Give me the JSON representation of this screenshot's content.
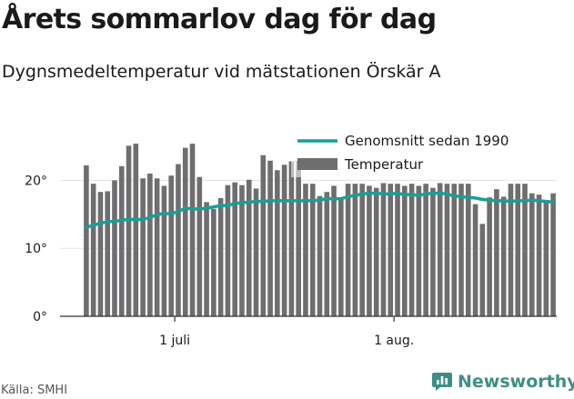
{
  "title": "Årets sommarlov dag för dag",
  "subtitle": "Dygnsmedeltemperatur vid mätstationen Örskär A",
  "source": "Källa: SMHI",
  "brand": {
    "name": "Newsworthy",
    "icon": "newsworthy-chart-logo-icon",
    "color": "#3d8f86"
  },
  "chart_data": {
    "type": "bar",
    "ylim": [
      0,
      26
    ],
    "yticks": [
      {
        "value": 0,
        "label": "0°"
      },
      {
        "value": 10,
        "label": "10°"
      },
      {
        "value": 20,
        "label": "20°"
      }
    ],
    "xticks": [
      {
        "index": 13,
        "label": "1 juli"
      },
      {
        "index": 44,
        "label": "1 aug."
      }
    ],
    "grid": true,
    "legend_position": "top-right",
    "colors": {
      "bars": "#6e6e70",
      "line": "#1a9e95",
      "gridline": "#e4e4e4",
      "axis": "#333333"
    },
    "series": [
      {
        "name": "Temperatur",
        "type": "bar",
        "values": [
          22.2,
          19.5,
          18.3,
          18.4,
          20.0,
          22.1,
          25.1,
          25.4,
          20.3,
          21.0,
          20.3,
          19.2,
          20.7,
          22.4,
          24.8,
          25.4,
          20.5,
          16.8,
          15.8,
          17.4,
          19.3,
          19.7,
          19.3,
          20.1,
          18.8,
          23.7,
          22.9,
          21.5,
          22.3,
          22.8,
          22.9,
          19.5,
          19.5,
          17.7,
          18.3,
          19.2,
          17.5,
          19.5,
          19.5,
          19.5,
          19.2,
          18.9,
          19.6,
          19.5,
          19.5,
          19.2,
          19.5,
          19.2,
          19.5,
          18.9,
          19.6,
          19.5,
          19.5,
          19.5,
          19.5,
          16.5,
          13.6,
          17.5,
          18.7,
          17.6,
          19.5,
          19.5,
          19.5,
          18.1,
          17.9,
          16.9,
          18.1
        ]
      },
      {
        "name": "Genomsnitt sedan 1990",
        "type": "line",
        "values": [
          13.1,
          13.4,
          13.7,
          13.9,
          14.0,
          14.1,
          14.3,
          14.2,
          14.3,
          14.5,
          15.0,
          15.1,
          15.1,
          15.4,
          15.9,
          15.8,
          15.8,
          15.9,
          16.1,
          16.3,
          16.3,
          16.6,
          16.7,
          16.8,
          16.9,
          16.9,
          17.0,
          17.0,
          17.0,
          17.0,
          17.0,
          17.0,
          17.0,
          17.1,
          17.3,
          17.3,
          17.3,
          17.6,
          17.8,
          18.0,
          18.1,
          18.1,
          18.0,
          18.0,
          18.1,
          17.9,
          17.9,
          17.8,
          18.0,
          18.1,
          18.1,
          18.0,
          17.7,
          17.6,
          17.5,
          17.4,
          17.2,
          17.1,
          17.0,
          17.0,
          16.9,
          17.0,
          17.0,
          17.1,
          17.0,
          16.9,
          16.8
        ]
      }
    ]
  }
}
